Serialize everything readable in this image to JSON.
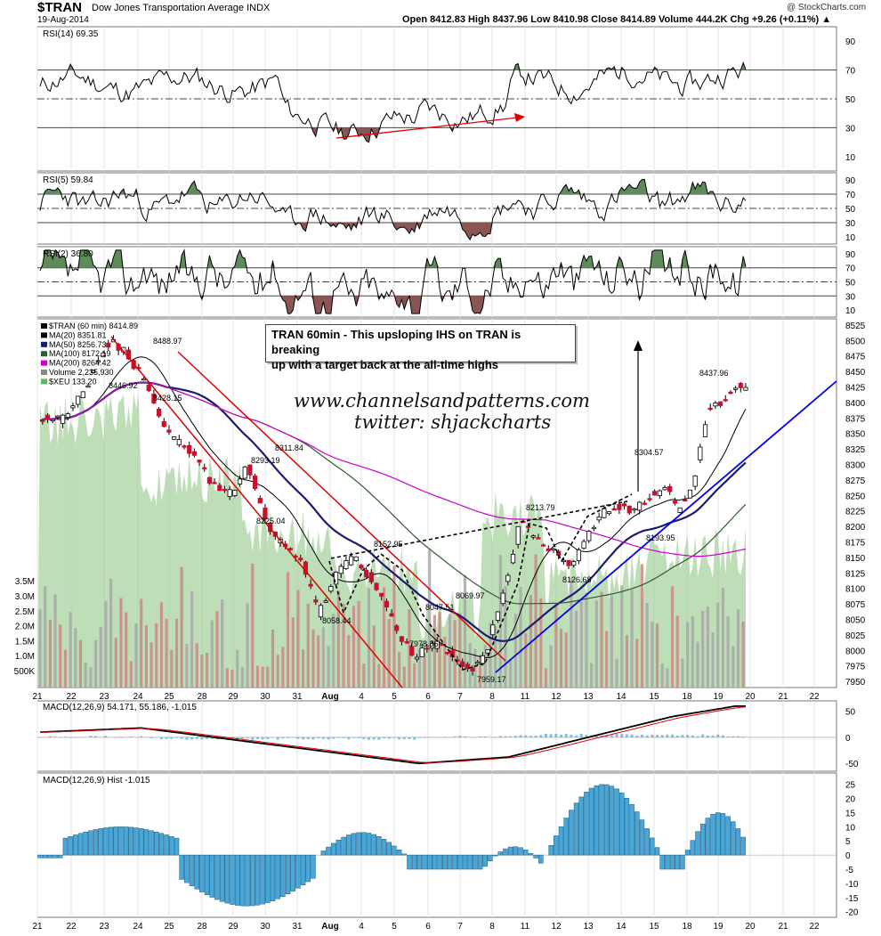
{
  "header": {
    "ticker": "$TRAN",
    "name": "Dow Jones Transportation Average INDX",
    "date": "19-Aug-2014",
    "ohlc": "Open 8412.83  High 8437.96  Low 8410.98  Close 8414.89  Volume 444.2K  Chg +9.26 (+0.11%) ▲",
    "logo": "@ StockCharts.com"
  },
  "annotation": {
    "line1": "TRAN 60min - This upsloping IHS on TRAN is breaking",
    "line2": "up with a target back at the all-time highs"
  },
  "watermark": {
    "site": "www.channelsandpatterns.com",
    "twitter": "twitter: shjackcharts"
  },
  "colors": {
    "up": "#ffffff",
    "down": "#c8102e",
    "ma20": "#000000",
    "ma50": "#1c1c6e",
    "ma100": "#2e5c2e",
    "ma200": "#cc00cc",
    "xeu": "#a8d3a0",
    "channel": "#e00000",
    "trend": "#0000ee",
    "hist": "#4aa6d6"
  },
  "chart_data": [
    {
      "type": "line",
      "panel": "RSI(14)",
      "legend": "RSI(14) 69.35",
      "yticks": [
        10,
        30,
        50,
        70,
        90
      ],
      "ylim": [
        0,
        100
      ]
    },
    {
      "type": "line",
      "panel": "RSI(5)",
      "legend": "RSI(5) 59.84",
      "yticks": [
        10,
        30,
        50,
        70,
        90
      ],
      "ylim": [
        0,
        100
      ]
    },
    {
      "type": "line",
      "panel": "RSI(2)",
      "legend": "RSI(2) 36.80",
      "yticks": [
        10,
        30,
        50,
        70,
        90
      ],
      "ylim": [
        0,
        100
      ]
    },
    {
      "type": "line",
      "panel": "price",
      "legend": [
        "$TRAN (60 min) 8414.89",
        "MA(20) 8351.81",
        "MA(50) 8256.73",
        "MA(100) 8172.19",
        "MA(200) 8264.42",
        "Volume 2,235,930",
        "$XEU 133.20"
      ],
      "yticks": [
        7950,
        7975,
        8000,
        8025,
        8050,
        8075,
        8100,
        8125,
        8150,
        8175,
        8200,
        8225,
        8250,
        8275,
        8300,
        8325,
        8350,
        8375,
        8400,
        8425,
        8450,
        8475,
        8500,
        8525
      ],
      "ylim": [
        7940,
        8535
      ],
      "volume_ticks": [
        "500K",
        "1.0M",
        "1.5M",
        "2.0M",
        "2.5M",
        "3.0M",
        "3.5M"
      ],
      "price_labels": [
        {
          "label": "8488.97",
          "v": 8488.97
        },
        {
          "label": "8446.92",
          "v": 8446.92
        },
        {
          "label": "8428.15",
          "v": 8428.15
        },
        {
          "label": "8311.84",
          "v": 8311.84
        },
        {
          "label": "8293.19",
          "v": 8293.19
        },
        {
          "label": "8225.04",
          "v": 8225.04
        },
        {
          "label": "8152.95",
          "v": 8152.95
        },
        {
          "label": "8058.44",
          "v": 8058.44
        },
        {
          "label": "8069.97",
          "v": 8069.97
        },
        {
          "label": "8047.51",
          "v": 8047.51
        },
        {
          "label": "7978.36",
          "v": 7978.36
        },
        {
          "label": "7959.17",
          "v": 7959.17
        },
        {
          "label": "8213.79",
          "v": 8213.79
        },
        {
          "label": "8126.68",
          "v": 8126.68
        },
        {
          "label": "8304.57",
          "v": 8304.57
        },
        {
          "label": "8193.95",
          "v": 8193.95
        },
        {
          "label": "8437.96",
          "v": 8437.96
        }
      ]
    },
    {
      "type": "line",
      "panel": "MACD",
      "legend": "MACD(12,26,9) 54.171, 55.186, -1.015",
      "yticks": [
        -50,
        0,
        50
      ],
      "ylim": [
        -65,
        70
      ]
    },
    {
      "type": "bar",
      "panel": "MACD Hist",
      "legend": "MACD(12,26,9) Hist -1.015",
      "yticks": [
        -20,
        -15,
        -10,
        -5,
        0,
        5,
        10,
        15,
        20,
        25
      ],
      "ylim": [
        -22,
        29
      ]
    }
  ],
  "x_axis": [
    "21",
    "22",
    "23",
    "24",
    "25",
    "28",
    "29",
    "30",
    "31",
    "Aug",
    "4",
    "5",
    "6",
    "7",
    "8",
    "11",
    "12",
    "13",
    "14",
    "15",
    "18",
    "19",
    "20",
    "21",
    "22"
  ]
}
